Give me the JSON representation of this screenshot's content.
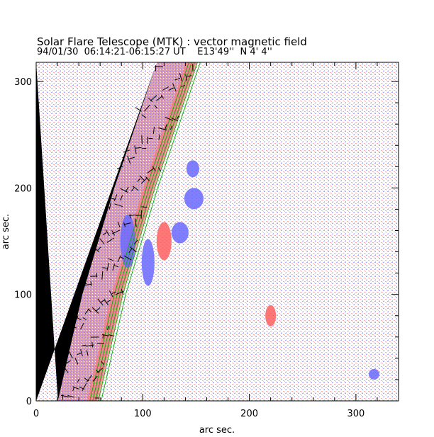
{
  "header": {
    "title": "Solar Flare Telescope (MTK) : vector magnetic field",
    "subtitle": "94/01/30  06:14:21-06:15:27 UT    E13'49''  N 4' 4''"
  },
  "chart_data": {
    "type": "heatmap",
    "title": "Solar Flare Telescope (MTK) : vector magnetic field",
    "subtitle": "94/01/30  06:14:21-06:15:27 UT    E13'49''  N 4' 4''",
    "xlabel": "arc sec.",
    "ylabel": "arc sec.",
    "xlim": [
      0,
      340
    ],
    "ylim": [
      0,
      318
    ],
    "xticks": [
      0,
      100,
      200,
      300
    ],
    "yticks": [
      0,
      100,
      200,
      300
    ],
    "colors": {
      "positive_field": "#ff6060",
      "negative_field": "#6a6aff",
      "off_disk": "#000000",
      "contours": "#00b000",
      "vectors": "#000000"
    },
    "limb": [
      [
        57,
        0
      ],
      [
        80,
        100
      ],
      [
        110,
        200
      ],
      [
        150,
        318
      ]
    ],
    "regions": [
      {
        "polarity": "negative",
        "x": 86,
        "y": 150,
        "rx": 7,
        "ry": 25
      },
      {
        "polarity": "negative",
        "x": 105,
        "y": 130,
        "rx": 6,
        "ry": 22
      },
      {
        "polarity": "positive",
        "x": 120,
        "y": 150,
        "rx": 7,
        "ry": 18
      },
      {
        "polarity": "negative",
        "x": 135,
        "y": 158,
        "rx": 8,
        "ry": 10
      },
      {
        "polarity": "negative",
        "x": 148,
        "y": 190,
        "rx": 9,
        "ry": 10
      },
      {
        "polarity": "negative",
        "x": 147,
        "y": 218,
        "rx": 6,
        "ry": 8
      },
      {
        "polarity": "positive",
        "x": 220,
        "y": 80,
        "rx": 5,
        "ry": 10
      },
      {
        "polarity": "negative",
        "x": 317,
        "y": 25,
        "rx": 5,
        "ry": 5
      }
    ]
  }
}
